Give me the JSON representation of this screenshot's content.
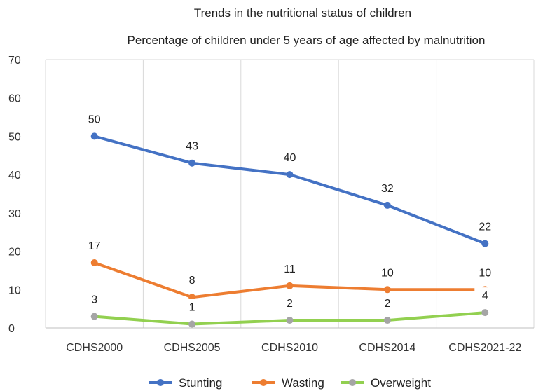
{
  "chart_data": {
    "type": "line",
    "title": "Trends in the nutritional status of children",
    "subtitle": "Percentage of children under 5 years of age affected by malnutrition",
    "xlabel": "",
    "ylabel": "",
    "categories": [
      "CDHS2000",
      "CDHS2005",
      "CDHS2010",
      "CDHS2014",
      "CDHS2021-22"
    ],
    "ylim": [
      0,
      70
    ],
    "yticks": [
      0,
      10,
      20,
      30,
      40,
      50,
      60,
      70
    ],
    "grid": "vertical",
    "legend": "bottom",
    "series": [
      {
        "name": "Stunting",
        "color": "#4472C4",
        "values": [
          50,
          43,
          40,
          32,
          22
        ]
      },
      {
        "name": "Wasting",
        "color": "#ED7D31",
        "values": [
          17,
          8,
          11,
          10,
          10
        ]
      },
      {
        "name": "Overweight",
        "color": "#92D050",
        "point_color": "#A5A5A5",
        "values": [
          3,
          1,
          2,
          2,
          4
        ]
      }
    ]
  }
}
